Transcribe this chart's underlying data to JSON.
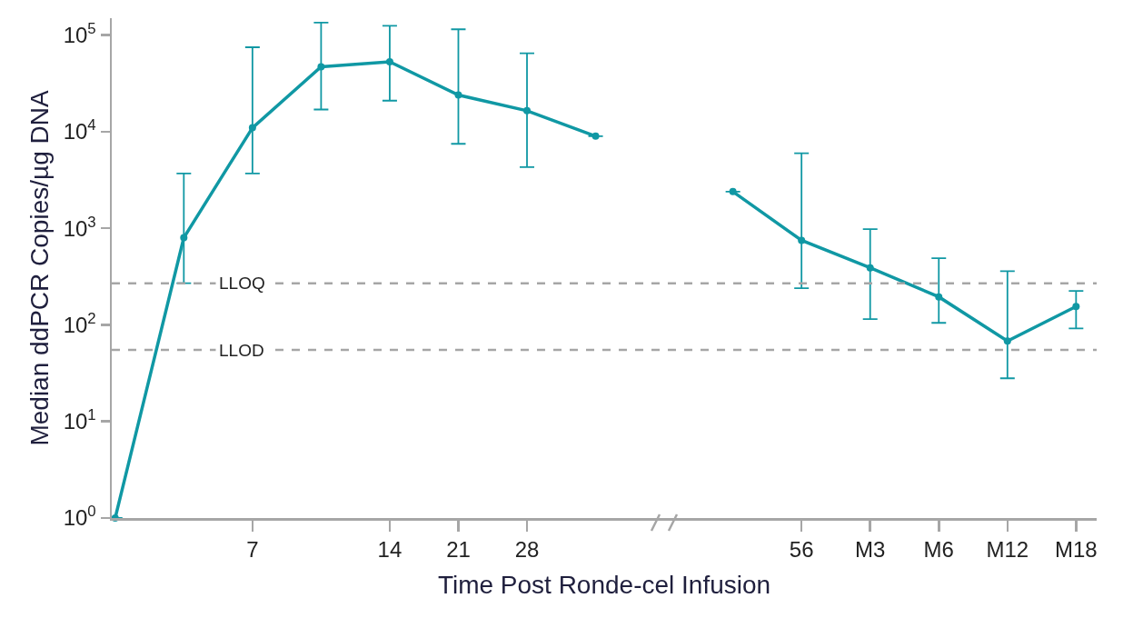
{
  "chart_data": {
    "type": "line",
    "ylabel": "Median ddPCR Copies/µg DNA",
    "xlabel": "Time Post Ronde-cel Infusion",
    "categories": [
      null,
      null,
      "7",
      null,
      "14",
      "21",
      "28",
      null,
      null,
      null,
      "56",
      "M3",
      "M6",
      "M12",
      "M18"
    ],
    "series": [
      {
        "color": "#1098a4",
        "values": [
          1,
          800,
          11000,
          47000,
          53000,
          24000,
          16500,
          9000,
          null,
          2400,
          750,
          390,
          195,
          68,
          155
        ],
        "errors": [
          null,
          [
            270,
            3700
          ],
          [
            3700,
            75000
          ],
          [
            17000,
            135000
          ],
          [
            21000,
            125000
          ],
          [
            7500,
            115000
          ],
          [
            4300,
            65000
          ],
          null,
          null,
          null,
          [
            240,
            6000
          ],
          [
            115,
            980
          ],
          [
            105,
            490
          ],
          [
            28,
            360
          ],
          [
            92,
            225
          ]
        ]
      }
    ],
    "ylim": [
      1,
      150000
    ],
    "yticks": [
      {
        "value": 1,
        "label": "10$^{0}$"
      },
      {
        "value": 10,
        "label": "10$^{1}$"
      },
      {
        "value": 100,
        "label": "10$^{2}$"
      },
      {
        "value": 1000,
        "label": "10$^{3}$"
      },
      {
        "value": 10000,
        "label": "10$^{4}$"
      },
      {
        "value": 100000,
        "label": "10$^{5}$"
      }
    ],
    "log": "y",
    "marker": "circle",
    "line_style": "solid",
    "ref_lines": [
      {
        "axis": "y",
        "value": 270,
        "label": "LLOQ",
        "color": "#a6a6a6",
        "line_style": "dashed"
      },
      {
        "axis": "y",
        "value": 55,
        "label": "LLOD",
        "color": "#a6a6a6",
        "line_style": "dashed"
      }
    ]
  }
}
